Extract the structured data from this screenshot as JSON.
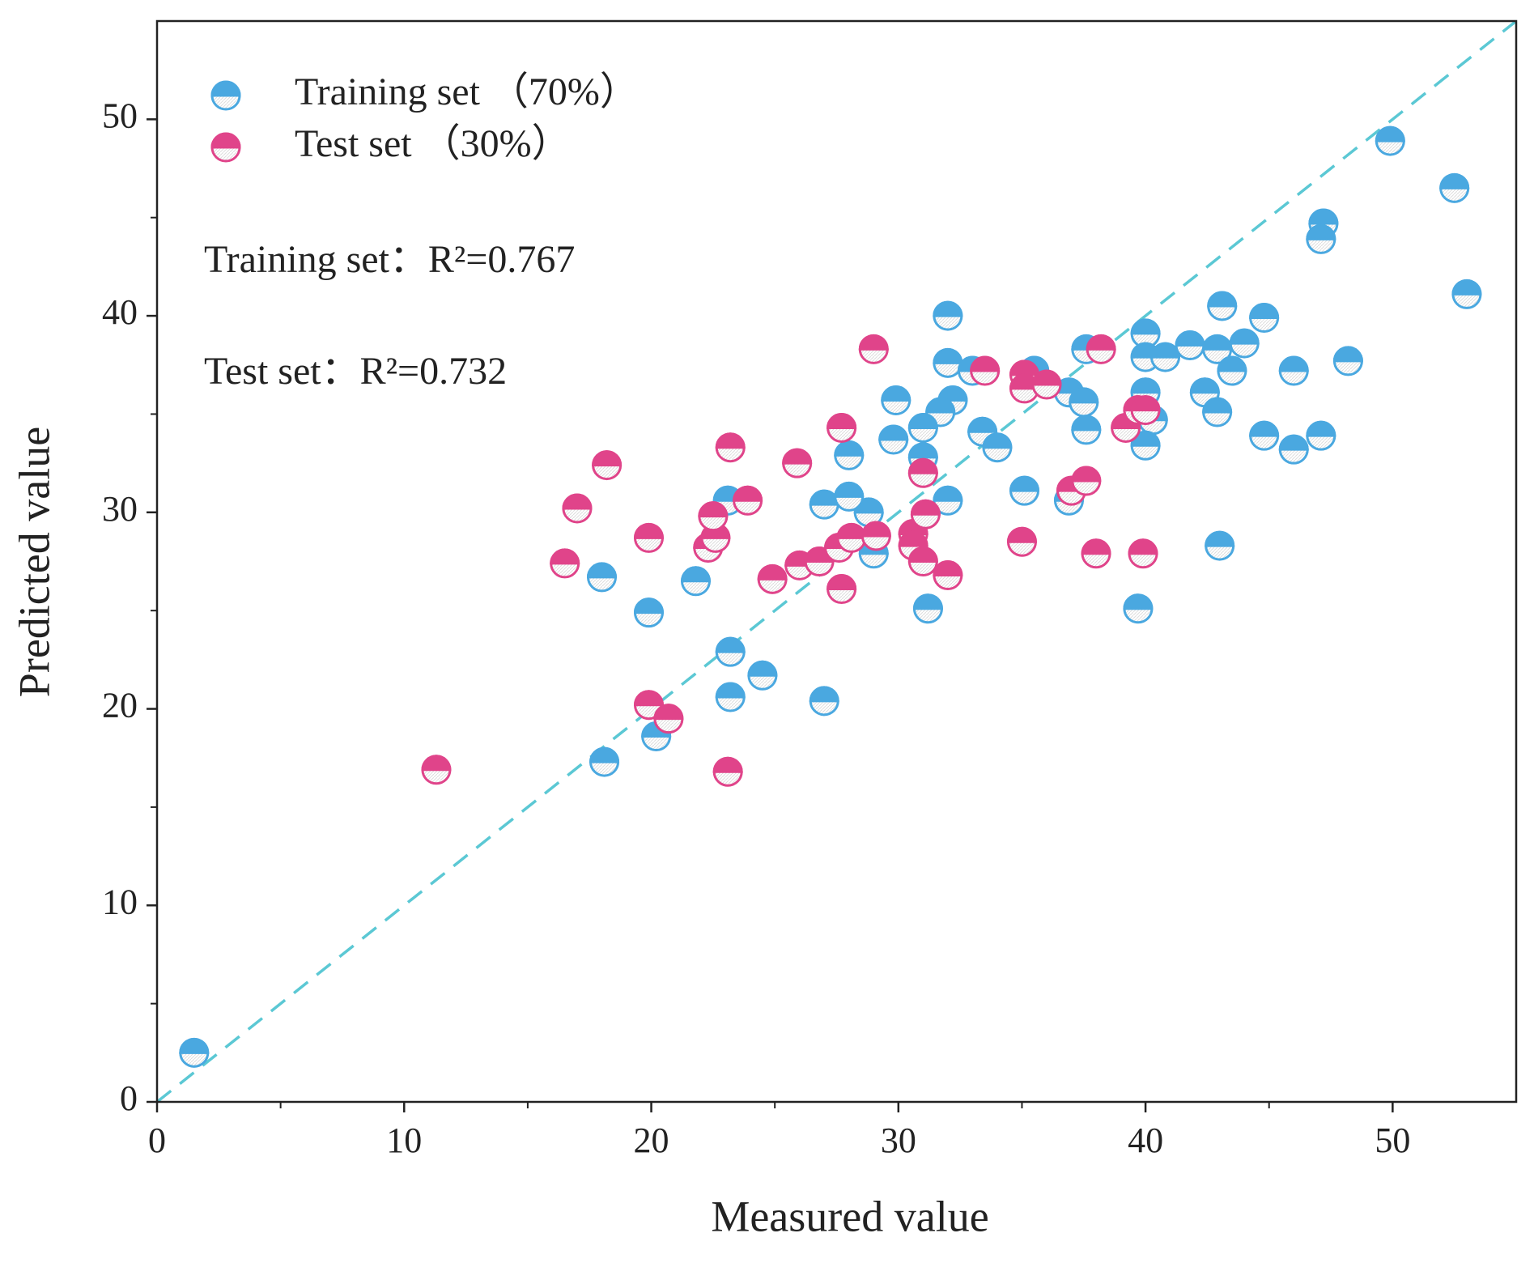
{
  "chart_data": {
    "type": "scatter",
    "xlabel": "Measured value",
    "ylabel": "Predicted value",
    "xlim": [
      0,
      55
    ],
    "ylim": [
      0,
      55
    ],
    "xticks": [
      0,
      10,
      20,
      30,
      40,
      50
    ],
    "yticks": [
      0,
      10,
      20,
      30,
      40,
      50
    ],
    "xticks_minor": [
      5,
      15,
      25,
      35,
      45
    ],
    "yticks_minor": [
      5,
      15,
      25,
      35,
      45
    ],
    "legend": "upper left",
    "annotations": [
      "Training set：R²=0.767",
      "Test set：R²=0.732"
    ],
    "series": [
      {
        "name": "Training set （70%）",
        "color": "#4aa8e0",
        "x": [
          1.5,
          49.9,
          52.5,
          47.2,
          47.1,
          53.0,
          32.0,
          43.1,
          44.8,
          40.0,
          40.0,
          40.8,
          41.8,
          42.9,
          44.0,
          43.5,
          46.0,
          48.2,
          37.6,
          32.0,
          33.0,
          35.5,
          36.9,
          37.5,
          40.0,
          40.3,
          42.4,
          42.9,
          44.8,
          46.0,
          47.1,
          40.0,
          37.6,
          29.9,
          32.2,
          31.7,
          31.0,
          33.4,
          34.0,
          29.8,
          28.0,
          31.0,
          35.1,
          36.9,
          32.0,
          28.8,
          27.0,
          28.0,
          23.1,
          29.0,
          18.0,
          21.8,
          19.9,
          31.2,
          39.7,
          43.0,
          23.2,
          24.5,
          23.2,
          27.0,
          20.2,
          18.1
        ],
        "values": [
          2.5,
          48.9,
          46.5,
          44.7,
          43.9,
          41.1,
          40.0,
          40.5,
          39.9,
          39.1,
          37.9,
          37.9,
          38.5,
          38.3,
          38.6,
          37.2,
          37.2,
          37.7,
          38.3,
          37.6,
          37.2,
          37.2,
          36.1,
          35.6,
          36.1,
          34.7,
          36.1,
          35.1,
          33.9,
          33.2,
          33.9,
          33.4,
          34.2,
          35.7,
          35.7,
          35.1,
          34.3,
          34.1,
          33.3,
          33.7,
          32.9,
          32.8,
          31.1,
          30.6,
          30.6,
          30.0,
          30.4,
          30.8,
          30.6,
          27.9,
          26.7,
          26.5,
          24.9,
          25.1,
          25.1,
          28.3,
          22.9,
          21.7,
          20.6,
          20.4,
          18.6,
          17.3
        ]
      },
      {
        "name": "Test set （30%）",
        "color": "#e0448a",
        "x": [
          11.3,
          23.1,
          19.9,
          20.7,
          16.5,
          17.0,
          18.2,
          19.9,
          22.3,
          22.6,
          22.5,
          23.2,
          23.9,
          24.9,
          25.9,
          26.0,
          26.8,
          27.6,
          27.7,
          27.7,
          28.1,
          29.0,
          29.1,
          30.6,
          30.6,
          31.0,
          31.1,
          31.0,
          32.0,
          33.5,
          35.1,
          35.1,
          36.0,
          35.0,
          37.0,
          37.6,
          38.2,
          38.0,
          39.2,
          39.7,
          40.0,
          39.9
        ],
        "values": [
          16.9,
          16.8,
          20.2,
          19.5,
          27.4,
          30.2,
          32.4,
          28.7,
          28.2,
          28.7,
          29.8,
          33.3,
          30.6,
          26.6,
          32.5,
          27.3,
          27.5,
          28.2,
          26.1,
          34.3,
          28.7,
          38.3,
          28.8,
          28.9,
          28.3,
          32.0,
          29.9,
          27.5,
          26.8,
          37.2,
          37.0,
          36.3,
          36.5,
          28.5,
          31.1,
          31.6,
          38.3,
          27.9,
          34.3,
          35.2,
          35.2,
          27.9
        ]
      }
    ]
  }
}
